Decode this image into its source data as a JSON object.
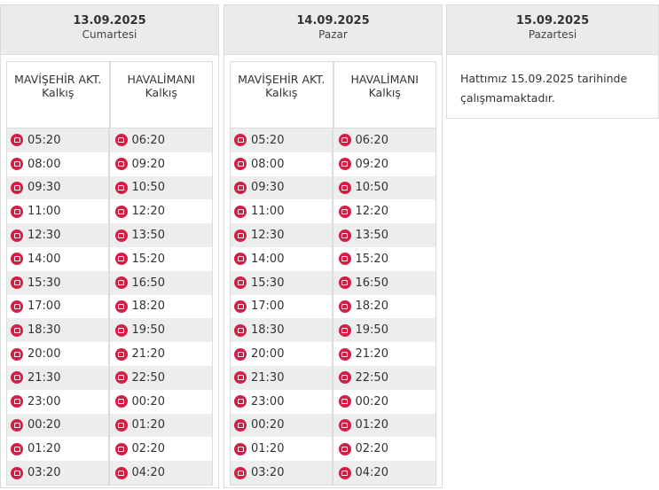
{
  "columns": {
    "departure_a": "MAVİŞEHİR AKT. Kalkış",
    "departure_b": "HAVALİMANI Kalkış"
  },
  "days": [
    {
      "date": "13.09.2025",
      "weekday": "Cumartesi",
      "mavisehir": [
        "05:20",
        "08:00",
        "09:30",
        "11:00",
        "12:30",
        "14:00",
        "15:30",
        "17:00",
        "18:30",
        "20:00",
        "21:30",
        "23:00",
        "00:20",
        "01:20",
        "03:20"
      ],
      "havalimani": [
        "06:20",
        "09:20",
        "10:50",
        "12:20",
        "13:50",
        "15:20",
        "16:50",
        "18:20",
        "19:50",
        "21:20",
        "22:50",
        "00:20",
        "01:20",
        "02:20",
        "04:20"
      ]
    },
    {
      "date": "14.09.2025",
      "weekday": "Pazar",
      "mavisehir": [
        "05:20",
        "08:00",
        "09:30",
        "11:00",
        "12:30",
        "14:00",
        "15:30",
        "17:00",
        "18:30",
        "20:00",
        "21:30",
        "23:00",
        "00:20",
        "01:20",
        "03:20"
      ],
      "havalimani": [
        "06:20",
        "09:20",
        "10:50",
        "12:20",
        "13:50",
        "15:20",
        "16:50",
        "18:20",
        "19:50",
        "21:20",
        "22:50",
        "00:20",
        "01:20",
        "02:20",
        "04:20"
      ]
    },
    {
      "date": "15.09.2025",
      "weekday": "Pazartesi",
      "notice": "Hattımız 15.09.2025 tarihinde çalışmamaktadır."
    }
  ]
}
